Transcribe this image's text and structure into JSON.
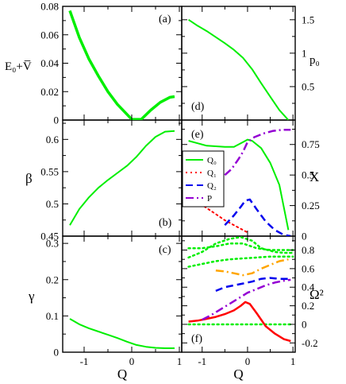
{
  "figure": {
    "x_axis_label": "Q",
    "x_ticks": [
      "-1",
      "0",
      "1"
    ],
    "xlim": [
      -1.45,
      1.05
    ]
  },
  "panels": [
    {
      "id": "a",
      "label": "(a)",
      "ylabel": "E₀+V̅",
      "ylim": [
        0,
        0.08
      ],
      "yticks": [
        0,
        0.02,
        0.04,
        0.06,
        0.08
      ],
      "ytick_labels": [
        "0",
        "0.02",
        "0.04",
        "0.06",
        "0.08"
      ],
      "series": [
        {
          "color": "#00ee00",
          "dash": "solid",
          "width": 3.5,
          "x": [
            -1.3,
            -1.1,
            -0.9,
            -0.7,
            -0.5,
            -0.3,
            -0.1,
            0.0,
            0.2,
            0.4,
            0.6,
            0.8,
            0.9
          ],
          "y": [
            0.077,
            0.058,
            0.043,
            0.031,
            0.02,
            0.011,
            0.004,
            0.0005,
            0.0005,
            0.007,
            0.0125,
            0.016,
            0.0165
          ]
        }
      ]
    },
    {
      "id": "b",
      "label": "(b)",
      "ylabel": "β",
      "ylim": [
        0.45,
        0.63
      ],
      "yticks": [
        0.45,
        0.5,
        0.55,
        0.6
      ],
      "ytick_labels": [
        "0.45",
        "0.5",
        "0.55",
        "0.6"
      ],
      "series": [
        {
          "color": "#00ee00",
          "dash": "solid",
          "width": 2,
          "x": [
            -1.3,
            -1.1,
            -0.9,
            -0.7,
            -0.5,
            -0.3,
            -0.1,
            0.1,
            0.3,
            0.5,
            0.7,
            0.9
          ],
          "y": [
            0.467,
            0.492,
            0.51,
            0.525,
            0.537,
            0.548,
            0.559,
            0.573,
            0.59,
            0.604,
            0.612,
            0.613
          ]
        }
      ]
    },
    {
      "id": "c",
      "label": "(c)",
      "ylabel": "γ",
      "ylim": [
        0,
        0.32
      ],
      "yticks": [
        0,
        0.1,
        0.2,
        0.3
      ],
      "ytick_labels": [
        "0",
        "0.1",
        "0.2",
        "0.3"
      ],
      "series": [
        {
          "color": "#00ee00",
          "dash": "solid",
          "width": 2,
          "x": [
            -1.3,
            -1.1,
            -0.9,
            -0.7,
            -0.5,
            -0.3,
            -0.1,
            0.1,
            0.3,
            0.5,
            0.7,
            0.9
          ],
          "y": [
            0.092,
            0.077,
            0.066,
            0.057,
            0.048,
            0.039,
            0.029,
            0.02,
            0.015,
            0.012,
            0.011,
            0.011
          ]
        }
      ]
    },
    {
      "id": "d",
      "label": "(d)",
      "ylabel": "p₀",
      "ylim": [
        0,
        1.7
      ],
      "yticks": [
        0.5,
        1,
        1.5
      ],
      "ytick_labels": [
        "0.5",
        "1",
        "1.5"
      ],
      "series": [
        {
          "color": "#00ee00",
          "dash": "solid",
          "width": 2,
          "x": [
            -1.3,
            -1.1,
            -0.9,
            -0.7,
            -0.5,
            -0.3,
            -0.1,
            0.1,
            0.3,
            0.5,
            0.7,
            0.9
          ],
          "y": [
            1.5,
            1.41,
            1.33,
            1.24,
            1.15,
            1.05,
            0.93,
            0.76,
            0.55,
            0.35,
            0.15,
            0.0
          ]
        }
      ]
    },
    {
      "id": "e",
      "label": "(e)",
      "ylabel": "X",
      "bottom_tick_label": "0",
      "ylim": [
        0,
        0.95
      ],
      "yticks": [
        0,
        0.25,
        0.5,
        0.75
      ],
      "ytick_labels": [
        "",
        "0.25",
        "0.5",
        "0.75"
      ],
      "legend": {
        "placement": "left",
        "entries": [
          {
            "label": "Q₀",
            "color": "#00ee00",
            "dash": "solid"
          },
          {
            "label": "Q₁",
            "color": "#ff0000",
            "dash": "dot"
          },
          {
            "label": "Q₂",
            "color": "#0000ee",
            "dash": "dash"
          },
          {
            "label": "P",
            "color": "#9400d3",
            "dash": "dashdot"
          }
        ]
      },
      "series": [
        {
          "name": "Q₀",
          "color": "#00ee00",
          "dash": "solid",
          "width": 2,
          "x": [
            -1.3,
            -1.1,
            -0.9,
            -0.7,
            -0.5,
            -0.3,
            -0.1,
            0.0,
            0.1,
            0.3,
            0.5,
            0.7,
            0.9
          ],
          "y": [
            0.78,
            0.76,
            0.74,
            0.735,
            0.73,
            0.73,
            0.77,
            0.79,
            0.78,
            0.72,
            0.6,
            0.42,
            0.05
          ]
        },
        {
          "name": "Q₁",
          "color": "#ff0000",
          "dash": "dot",
          "width": 2,
          "x": [
            -1.3,
            -1.1,
            -0.9,
            -0.7,
            -0.5,
            -0.3,
            -0.1,
            0.0
          ],
          "y": [
            0.33,
            0.28,
            0.23,
            0.18,
            0.13,
            0.09,
            0.05,
            0.03
          ]
        },
        {
          "name": "Q₂",
          "color": "#0000ee",
          "dash": "dash",
          "width": 2.5,
          "x": [
            -0.5,
            -0.3,
            -0.15,
            -0.05,
            0.05,
            0.2,
            0.4,
            0.6,
            0.8,
            0.95
          ],
          "y": [
            0.09,
            0.17,
            0.24,
            0.29,
            0.3,
            0.22,
            0.12,
            0.05,
            0.01,
            0.0
          ]
        },
        {
          "name": "P",
          "color": "#9400d3",
          "dash": "dashdot",
          "width": 2.5,
          "x": [
            -0.5,
            -0.35,
            -0.2,
            -0.1,
            0.0,
            0.15,
            0.35,
            0.55,
            0.75,
            0.95
          ],
          "y": [
            0.5,
            0.55,
            0.63,
            0.69,
            0.77,
            0.81,
            0.84,
            0.86,
            0.87,
            0.87
          ]
        }
      ]
    },
    {
      "id": "f",
      "label": "(f)",
      "ylabel": "Ω²",
      "ylim": [
        -0.3,
        0.95
      ],
      "yticks": [
        -0.2,
        0,
        0.2,
        0.4,
        0.6,
        0.8
      ],
      "ytick_labels": [
        "-0.2",
        "0",
        "0.2",
        "0.4",
        "0.6",
        "0.8"
      ],
      "series": [
        {
          "color": "#00ee00",
          "dash": "dot",
          "width": 2.5,
          "x": [
            -1.3,
            -0.5,
            0.0,
            0.5,
            1.0
          ],
          "y": [
            0.0,
            0.0,
            0.0,
            0.0,
            0.0
          ]
        },
        {
          "color": "#ff0000",
          "dash": "solid",
          "width": 2.5,
          "x": [
            -1.3,
            -1.1,
            -0.9,
            -0.7,
            -0.5,
            -0.3,
            -0.15,
            -0.05,
            0.05,
            0.2,
            0.4,
            0.6,
            0.8,
            0.95
          ],
          "y": [
            0.03,
            0.04,
            0.06,
            0.08,
            0.11,
            0.15,
            0.2,
            0.24,
            0.22,
            0.12,
            -0.02,
            -0.1,
            -0.16,
            -0.18
          ]
        },
        {
          "color": "#9400d3",
          "dash": "dashdot",
          "width": 2.5,
          "x": [
            -1.0,
            -0.8,
            -0.6,
            -0.4,
            -0.2,
            0.0,
            0.2,
            0.4,
            0.6,
            0.8,
            0.95
          ],
          "y": [
            0.05,
            0.1,
            0.16,
            0.22,
            0.28,
            0.34,
            0.38,
            0.42,
            0.45,
            0.47,
            0.48
          ]
        },
        {
          "color": "#0000ee",
          "dash": "dash",
          "width": 2.5,
          "x": [
            -0.7,
            -0.5,
            -0.3,
            -0.1,
            0.1,
            0.3,
            0.5,
            0.7,
            0.9
          ],
          "y": [
            0.36,
            0.4,
            0.42,
            0.44,
            0.46,
            0.49,
            0.5,
            0.49,
            0.49
          ]
        },
        {
          "color": "#ffa500",
          "dash": "dashdot",
          "width": 2.5,
          "x": [
            -0.7,
            -0.5,
            -0.3,
            -0.1,
            0.1,
            0.3,
            0.5,
            0.7,
            0.9
          ],
          "y": [
            0.58,
            0.57,
            0.55,
            0.53,
            0.55,
            0.6,
            0.64,
            0.68,
            0.7
          ]
        },
        {
          "color": "#00ee00",
          "dash": "dot",
          "width": 2.5,
          "x": [
            -1.3,
            -1.0,
            -0.7,
            -0.4,
            -0.1,
            0.2,
            0.5,
            0.8,
            1.0
          ],
          "y": [
            0.62,
            0.65,
            0.68,
            0.7,
            0.71,
            0.72,
            0.73,
            0.73,
            0.73
          ]
        },
        {
          "color": "#00ee00",
          "dash": "dot",
          "width": 2.5,
          "x": [
            -1.3,
            -1.0,
            -0.7,
            -0.4,
            -0.1,
            0.2,
            0.5,
            0.8,
            1.0
          ],
          "y": [
            0.82,
            0.82,
            0.84,
            0.87,
            0.87,
            0.82,
            0.8,
            0.8,
            0.8
          ]
        },
        {
          "color": "#00ee00",
          "dash": "dot",
          "width": 2.5,
          "x": [
            -1.3,
            -1.0,
            -0.7,
            -0.4,
            -0.15,
            0.1,
            0.3,
            0.6,
            0.8,
            1.0
          ],
          "y": [
            0.72,
            0.78,
            0.87,
            0.92,
            0.94,
            0.9,
            0.82,
            0.78,
            0.77,
            0.77
          ]
        }
      ]
    }
  ],
  "chart_data": [
    {
      "type": "line",
      "ylabel": "E₀+V̅",
      "xlabel": "",
      "ylim": [
        0,
        0.08
      ],
      "series": [
        {
          "x": [
            -1.3,
            -0.9,
            -0.5,
            -0.1,
            0.0,
            0.2,
            0.6,
            0.9
          ],
          "y": [
            0.077,
            0.043,
            0.02,
            0.004,
            0.0005,
            0.0005,
            0.0125,
            0.0165
          ]
        }
      ]
    },
    {
      "type": "line",
      "ylabel": "β",
      "xlabel": "",
      "ylim": [
        0.45,
        0.63
      ],
      "series": [
        {
          "x": [
            -1.3,
            -0.9,
            -0.5,
            -0.1,
            0.3,
            0.7,
            0.9
          ],
          "y": [
            0.467,
            0.51,
            0.537,
            0.559,
            0.59,
            0.612,
            0.613
          ]
        }
      ]
    },
    {
      "type": "line",
      "ylabel": "γ",
      "xlabel": "Q",
      "ylim": [
        0,
        0.32
      ],
      "series": [
        {
          "x": [
            -1.3,
            -0.9,
            -0.5,
            -0.1,
            0.3,
            0.7,
            0.9
          ],
          "y": [
            0.092,
            0.066,
            0.048,
            0.029,
            0.015,
            0.011,
            0.011
          ]
        }
      ]
    },
    {
      "type": "line",
      "ylabel": "p₀",
      "xlabel": "",
      "ylim": [
        0,
        1.7
      ],
      "series": [
        {
          "x": [
            -1.3,
            -0.9,
            -0.5,
            -0.1,
            0.3,
            0.7,
            0.9
          ],
          "y": [
            1.5,
            1.33,
            1.15,
            0.93,
            0.55,
            0.15,
            0.0
          ]
        }
      ]
    },
    {
      "type": "line",
      "ylabel": "X",
      "xlabel": "",
      "ylim": [
        0,
        0.95
      ],
      "series": [
        {
          "name": "Q₀",
          "x": [
            -1.3,
            -0.5,
            0.0,
            0.5,
            0.9
          ],
          "y": [
            0.78,
            0.73,
            0.79,
            0.6,
            0.05
          ]
        },
        {
          "name": "Q₁",
          "x": [
            -1.3,
            -0.7,
            -0.3,
            0.0
          ],
          "y": [
            0.33,
            0.18,
            0.09,
            0.03
          ]
        },
        {
          "name": "Q₂",
          "x": [
            -0.5,
            -0.05,
            0.05,
            0.4,
            0.95
          ],
          "y": [
            0.09,
            0.29,
            0.3,
            0.12,
            0.0
          ]
        },
        {
          "name": "P",
          "x": [
            -0.5,
            -0.2,
            0.0,
            0.35,
            0.95
          ],
          "y": [
            0.5,
            0.63,
            0.77,
            0.84,
            0.87
          ]
        }
      ]
    },
    {
      "type": "line",
      "ylabel": "Ω²",
      "xlabel": "Q",
      "ylim": [
        -0.3,
        0.95
      ],
      "series": [
        {
          "x": [
            -1.3,
            0.0,
            1.0
          ],
          "y": [
            0.0,
            0.0,
            0.0
          ]
        },
        {
          "x": [
            -1.3,
            -0.5,
            -0.05,
            0.2,
            0.6,
            0.95
          ],
          "y": [
            0.03,
            0.11,
            0.24,
            0.12,
            -0.1,
            -0.18
          ]
        },
        {
          "x": [
            -1.0,
            -0.4,
            0.0,
            0.4,
            0.95
          ],
          "y": [
            0.05,
            0.22,
            0.34,
            0.42,
            0.48
          ]
        },
        {
          "x": [
            -0.7,
            -0.3,
            0.1,
            0.5,
            0.9
          ],
          "y": [
            0.36,
            0.42,
            0.46,
            0.5,
            0.49
          ]
        },
        {
          "x": [
            -0.7,
            -0.1,
            0.3,
            0.9
          ],
          "y": [
            0.58,
            0.53,
            0.6,
            0.7
          ]
        },
        {
          "x": [
            -1.3,
            -0.4,
            0.2,
            1.0
          ],
          "y": [
            0.62,
            0.7,
            0.72,
            0.73
          ]
        },
        {
          "x": [
            -1.3,
            -0.4,
            0.2,
            1.0
          ],
          "y": [
            0.82,
            0.87,
            0.82,
            0.8
          ]
        },
        {
          "x": [
            -1.3,
            -0.4,
            0.1,
            0.6,
            1.0
          ],
          "y": [
            0.72,
            0.92,
            0.9,
            0.78,
            0.77
          ]
        }
      ]
    }
  ]
}
